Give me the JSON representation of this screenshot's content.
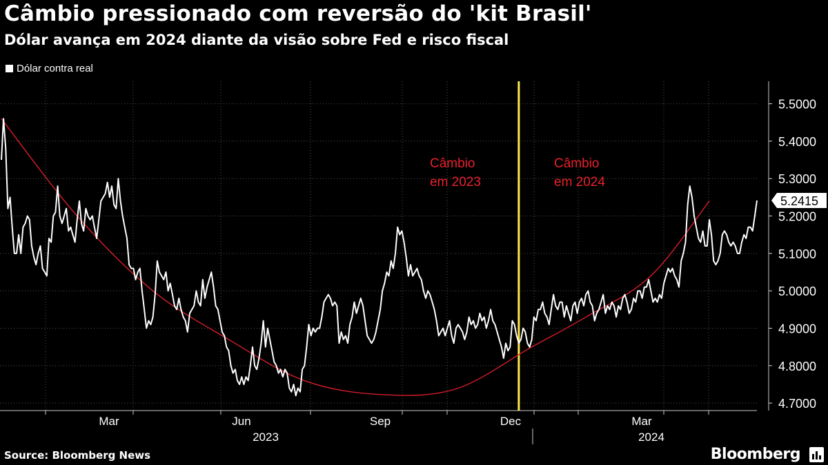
{
  "header": {
    "title": "Câmbio pressionado com reversão do 'kit Brasil'",
    "subtitle": "Dólar avança em 2024 diante da visão sobre Fed e risco fiscal"
  },
  "footer": {
    "source": "Source: Bloomberg News",
    "brand": "Bloomberg"
  },
  "chart_data": {
    "type": "line",
    "title": "Câmbio pressionado com reversão do 'kit Brasil'",
    "subtitle": "Dólar avança em 2024 diante da visão sobre Fed e risco fiscal",
    "legend": [
      {
        "label": "Dólar contra real",
        "color": "#ffffff",
        "placement": "top-left"
      }
    ],
    "x_tick_labels": [
      "Mar",
      "Jun",
      "Sep",
      "Dec",
      "Mar"
    ],
    "year_labels": [
      "2023",
      "2024"
    ],
    "ylim": [
      4.68,
      5.56
    ],
    "y_ticks": [
      "4.7000",
      "4.8000",
      "4.9000",
      "5.0000",
      "5.1000",
      "5.2000",
      "5.3000",
      "5.4000",
      "5.5000"
    ],
    "last_value_label": "5.2415",
    "colors": {
      "series": "#ffffff",
      "trend": "#d81e2a",
      "divider": "#ffe94d",
      "annotation": "#e8212b"
    },
    "annotations": [
      {
        "id": "cambio-2023",
        "line1": "Câmbio",
        "line2": "em 2023"
      },
      {
        "id": "cambio-2024",
        "line1": "Câmbio",
        "line2": "em 2024"
      }
    ],
    "divider_index": 239,
    "series": [
      {
        "name": "Dólar contra real",
        "values": [
          5.35,
          5.46,
          5.38,
          5.22,
          5.25,
          5.17,
          5.1,
          5.1,
          5.15,
          5.1,
          5.17,
          5.18,
          5.2,
          5.19,
          5.12,
          5.09,
          5.07,
          5.1,
          5.12,
          5.06,
          5.05,
          5.04,
          5.14,
          5.13,
          5.2,
          5.21,
          5.28,
          5.2,
          5.18,
          5.2,
          5.22,
          5.16,
          5.17,
          5.15,
          5.13,
          5.19,
          5.24,
          5.18,
          5.16,
          5.22,
          5.2,
          5.19,
          5.2,
          5.17,
          5.14,
          5.19,
          5.24,
          5.25,
          5.26,
          5.29,
          5.25,
          5.28,
          5.23,
          5.22,
          5.3,
          5.24,
          5.2,
          5.17,
          5.14,
          5.07,
          5.06,
          5.06,
          5.03,
          5.05,
          5.06,
          5.0,
          4.95,
          4.9,
          4.92,
          4.91,
          4.93,
          4.99,
          5.08,
          5.05,
          5.04,
          5.03,
          5.05,
          5.0,
          5.02,
          4.99,
          4.96,
          4.95,
          4.98,
          4.95,
          4.93,
          4.92,
          4.89,
          4.94,
          4.95,
          4.96,
          5.0,
          4.97,
          4.96,
          5.03,
          4.98,
          5.01,
          5.03,
          5.05,
          5.01,
          4.96,
          4.95,
          4.92,
          4.89,
          4.88,
          4.85,
          4.84,
          4.8,
          4.78,
          4.79,
          4.76,
          4.75,
          4.77,
          4.75,
          4.77,
          4.76,
          4.8,
          4.85,
          4.8,
          4.79,
          4.82,
          4.86,
          4.92,
          4.85,
          4.9,
          4.87,
          4.84,
          4.81,
          4.8,
          4.78,
          4.79,
          4.77,
          4.79,
          4.78,
          4.74,
          4.73,
          4.75,
          4.72,
          4.74,
          4.73,
          4.79,
          4.8,
          4.85,
          4.91,
          4.88,
          4.9,
          4.89,
          4.9,
          4.9,
          4.93,
          4.97,
          4.98,
          4.99,
          4.98,
          4.96,
          4.97,
          4.96,
          4.86,
          4.89,
          4.87,
          4.88,
          4.86,
          4.91,
          4.93,
          4.97,
          4.94,
          4.96,
          4.98,
          4.96,
          4.92,
          4.88,
          4.87,
          4.86,
          4.87,
          4.89,
          4.92,
          4.95,
          5.0,
          5.02,
          5.05,
          5.04,
          5.08,
          5.06,
          5.1,
          5.17,
          5.15,
          5.16,
          5.13,
          5.09,
          5.04,
          5.07,
          5.04,
          5.05,
          5.06,
          5.04,
          5.03,
          5.0,
          4.98,
          5.0,
          4.99,
          4.97,
          4.95,
          4.92,
          4.88,
          4.89,
          4.9,
          4.88,
          4.9,
          4.92,
          4.88,
          4.86,
          4.9,
          4.91,
          4.9,
          4.89,
          4.87,
          4.89,
          4.93,
          4.91,
          4.92,
          4.9,
          4.91,
          4.94,
          4.92,
          4.93,
          4.9,
          4.92,
          4.95,
          4.92,
          4.91,
          4.89,
          4.87,
          4.85,
          4.82,
          4.86,
          4.84,
          4.85,
          4.92,
          4.91,
          4.88,
          4.86,
          4.87,
          4.9,
          4.89,
          4.86,
          4.85,
          4.87,
          4.93,
          4.92,
          4.95,
          4.95,
          4.97,
          4.94,
          4.93,
          4.91,
          4.95,
          4.99,
          4.96,
          4.95,
          4.97,
          4.97,
          4.93,
          4.96,
          4.94,
          4.92,
          4.96,
          4.97,
          4.94,
          4.97,
          4.98,
          4.96,
          4.99,
          5.0,
          4.97,
          4.96,
          4.92,
          4.94,
          4.95,
          4.97,
          4.99,
          4.94,
          4.96,
          4.95,
          4.97,
          4.96,
          4.93,
          4.96,
          4.95,
          4.98,
          4.99,
          4.97,
          4.94,
          4.95,
          4.98,
          4.97,
          5.0,
          5.0,
          4.98,
          5.01,
          5.01,
          5.03,
          5.0,
          4.97,
          4.98,
          4.97,
          4.99,
          4.98,
          5.02,
          5.04,
          5.06,
          5.05,
          5.06,
          5.04,
          5.03,
          5.01,
          5.08,
          5.1,
          5.13,
          5.23,
          5.28,
          5.25,
          5.2,
          5.17,
          5.14,
          5.13,
          5.16,
          5.12,
          5.12,
          5.19,
          5.15,
          5.08,
          5.07,
          5.08,
          5.1,
          5.15,
          5.16,
          5.15,
          5.13,
          5.12,
          5.13,
          5.12,
          5.1,
          5.1,
          5.13,
          5.15,
          5.14,
          5.17,
          5.17,
          5.16,
          5.2,
          5.2415
        ]
      },
      {
        "name": "Tendência (curva)",
        "points": [
          [
            0,
            5.46
          ],
          [
            35,
            5.2
          ],
          [
            70,
            5.0
          ],
          [
            105,
            4.87
          ],
          [
            140,
            4.76
          ],
          [
            175,
            4.723
          ],
          [
            210,
            4.738
          ],
          [
            245,
            4.85
          ],
          [
            270,
            4.93
          ],
          [
            300,
            5.04
          ],
          [
            327,
            5.24
          ]
        ]
      }
    ]
  }
}
